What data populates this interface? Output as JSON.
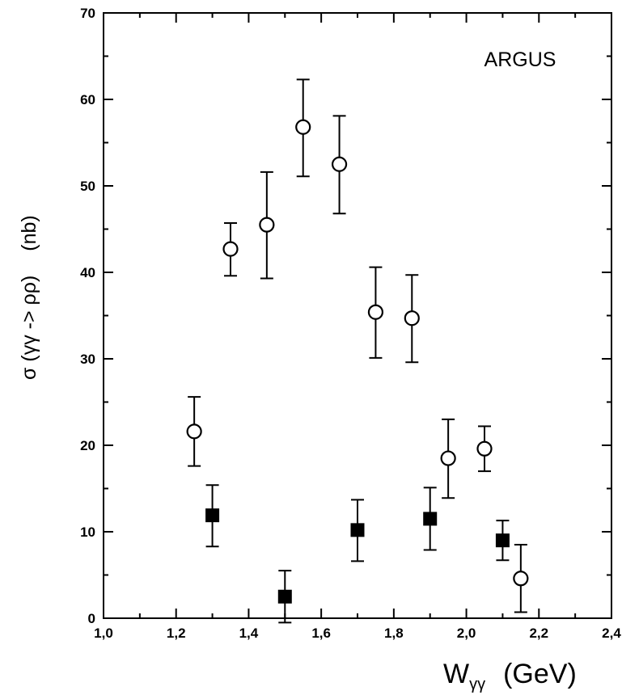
{
  "chart_data": {
    "type": "scatter",
    "title": "",
    "annotation": "ARGUS",
    "xlabel_main": "W",
    "xlabel_sub": "γγ",
    "xlabel_unit": "(GeV)",
    "ylabel_main": "σ (γγ -> ρρ)",
    "ylabel_unit": "(nb)",
    "xlim": [
      1.0,
      2.4
    ],
    "ylim": [
      0,
      70
    ],
    "x_ticks": [
      1.0,
      1.2,
      1.4,
      1.6,
      1.8,
      2.0,
      2.2,
      2.4
    ],
    "x_tick_labels": [
      "1,0",
      "1,2",
      "1,4",
      "1,6",
      "1,8",
      "2,0",
      "2,2",
      "2,4"
    ],
    "y_ticks": [
      0,
      10,
      20,
      30,
      40,
      50,
      60,
      70
    ],
    "y_tick_labels": [
      "0",
      "10",
      "20",
      "30",
      "40",
      "50",
      "60",
      "70"
    ],
    "grid": false,
    "series": [
      {
        "marker": "open-circle",
        "points": [
          {
            "x": 1.25,
            "y": 21.6,
            "lo": 17.6,
            "hi": 25.6
          },
          {
            "x": 1.35,
            "y": 42.7,
            "lo": 39.6,
            "hi": 45.7
          },
          {
            "x": 1.45,
            "y": 45.5,
            "lo": 39.3,
            "hi": 51.6
          },
          {
            "x": 1.55,
            "y": 56.8,
            "lo": 51.1,
            "hi": 62.3
          },
          {
            "x": 1.65,
            "y": 52.5,
            "lo": 46.8,
            "hi": 58.1
          },
          {
            "x": 1.75,
            "y": 35.4,
            "lo": 30.1,
            "hi": 40.6
          },
          {
            "x": 1.85,
            "y": 34.7,
            "lo": 29.6,
            "hi": 39.7
          },
          {
            "x": 1.95,
            "y": 18.5,
            "lo": 13.9,
            "hi": 23.0
          },
          {
            "x": 2.05,
            "y": 19.6,
            "lo": 17.0,
            "hi": 22.2
          },
          {
            "x": 2.15,
            "y": 4.6,
            "lo": 0.7,
            "hi": 8.5
          }
        ]
      },
      {
        "marker": "filled-square",
        "points": [
          {
            "x": 1.3,
            "y": 11.9,
            "lo": 8.3,
            "hi": 15.4
          },
          {
            "x": 1.5,
            "y": 2.5,
            "lo": -0.5,
            "hi": 5.5
          },
          {
            "x": 1.7,
            "y": 10.2,
            "lo": 6.6,
            "hi": 13.7
          },
          {
            "x": 1.9,
            "y": 11.5,
            "lo": 7.9,
            "hi": 15.1
          },
          {
            "x": 2.1,
            "y": 9.0,
            "lo": 6.7,
            "hi": 11.3
          }
        ]
      }
    ]
  }
}
